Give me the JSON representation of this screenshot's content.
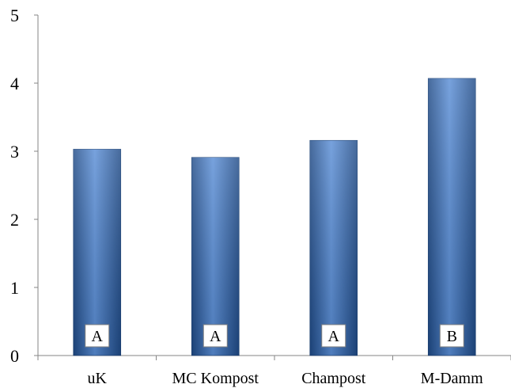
{
  "chart_data": {
    "type": "bar",
    "title": "",
    "xlabel": "",
    "ylabel": "",
    "categories": [
      "uK",
      "MC Kompost",
      "Champost",
      "M-Damm"
    ],
    "values": [
      3.03,
      2.91,
      3.16,
      4.07
    ],
    "significance_letters": [
      "A",
      "A",
      "A",
      "B"
    ],
    "ylim": [
      0,
      5
    ],
    "yticks": [
      "0",
      "1",
      "2",
      "3",
      "4",
      "5"
    ],
    "grid": false,
    "legend": "none",
    "bar_color": "#2e63b0",
    "bar_color_light": "#5a8ed6",
    "bar_color_dark": "#1f4a86"
  }
}
